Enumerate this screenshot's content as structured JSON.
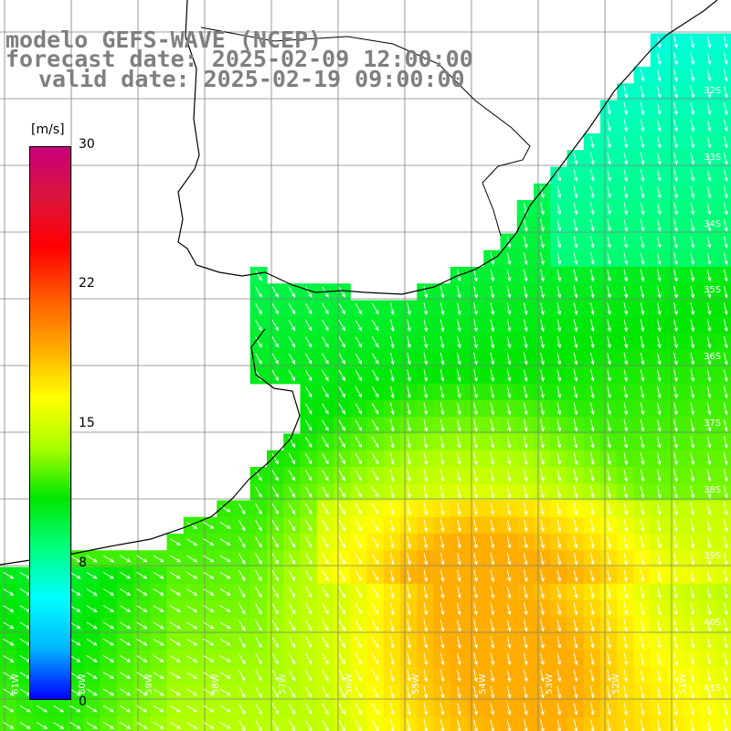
{
  "header": {
    "line1": "modelo GEFS-WAVE (NCEP)",
    "line2": "forecast date: 2025-02-09 12:00:00",
    "line3": "valid date: 2025-02-19 09:00:00"
  },
  "colorbar": {
    "units": "[m/s]",
    "min": 0,
    "max": 30,
    "ticks": [
      "30",
      "22",
      "15",
      "8",
      "0"
    ],
    "colors": [
      "#0000ff",
      "#00b4ff",
      "#00ffff",
      "#00ff7f",
      "#00e600",
      "#aaff00",
      "#ffff00",
      "#ffaa00",
      "#ff5a00",
      "#ff0000",
      "#dc143c",
      "#c8007a"
    ]
  },
  "map": {
    "land_color": "#ffffff",
    "grid_color": "#808080",
    "coast_color": "#000000",
    "arrow_color": "#ffffff",
    "lat_labels": [
      "32S",
      "33S",
      "34S",
      "35S",
      "36S",
      "37S",
      "38S",
      "39S",
      "40S",
      "41S"
    ],
    "lon_labels": [
      "61W",
      "60W",
      "59W",
      "58W",
      "57W",
      "56W",
      "55W",
      "54W",
      "53W",
      "52W",
      "51W"
    ]
  }
}
